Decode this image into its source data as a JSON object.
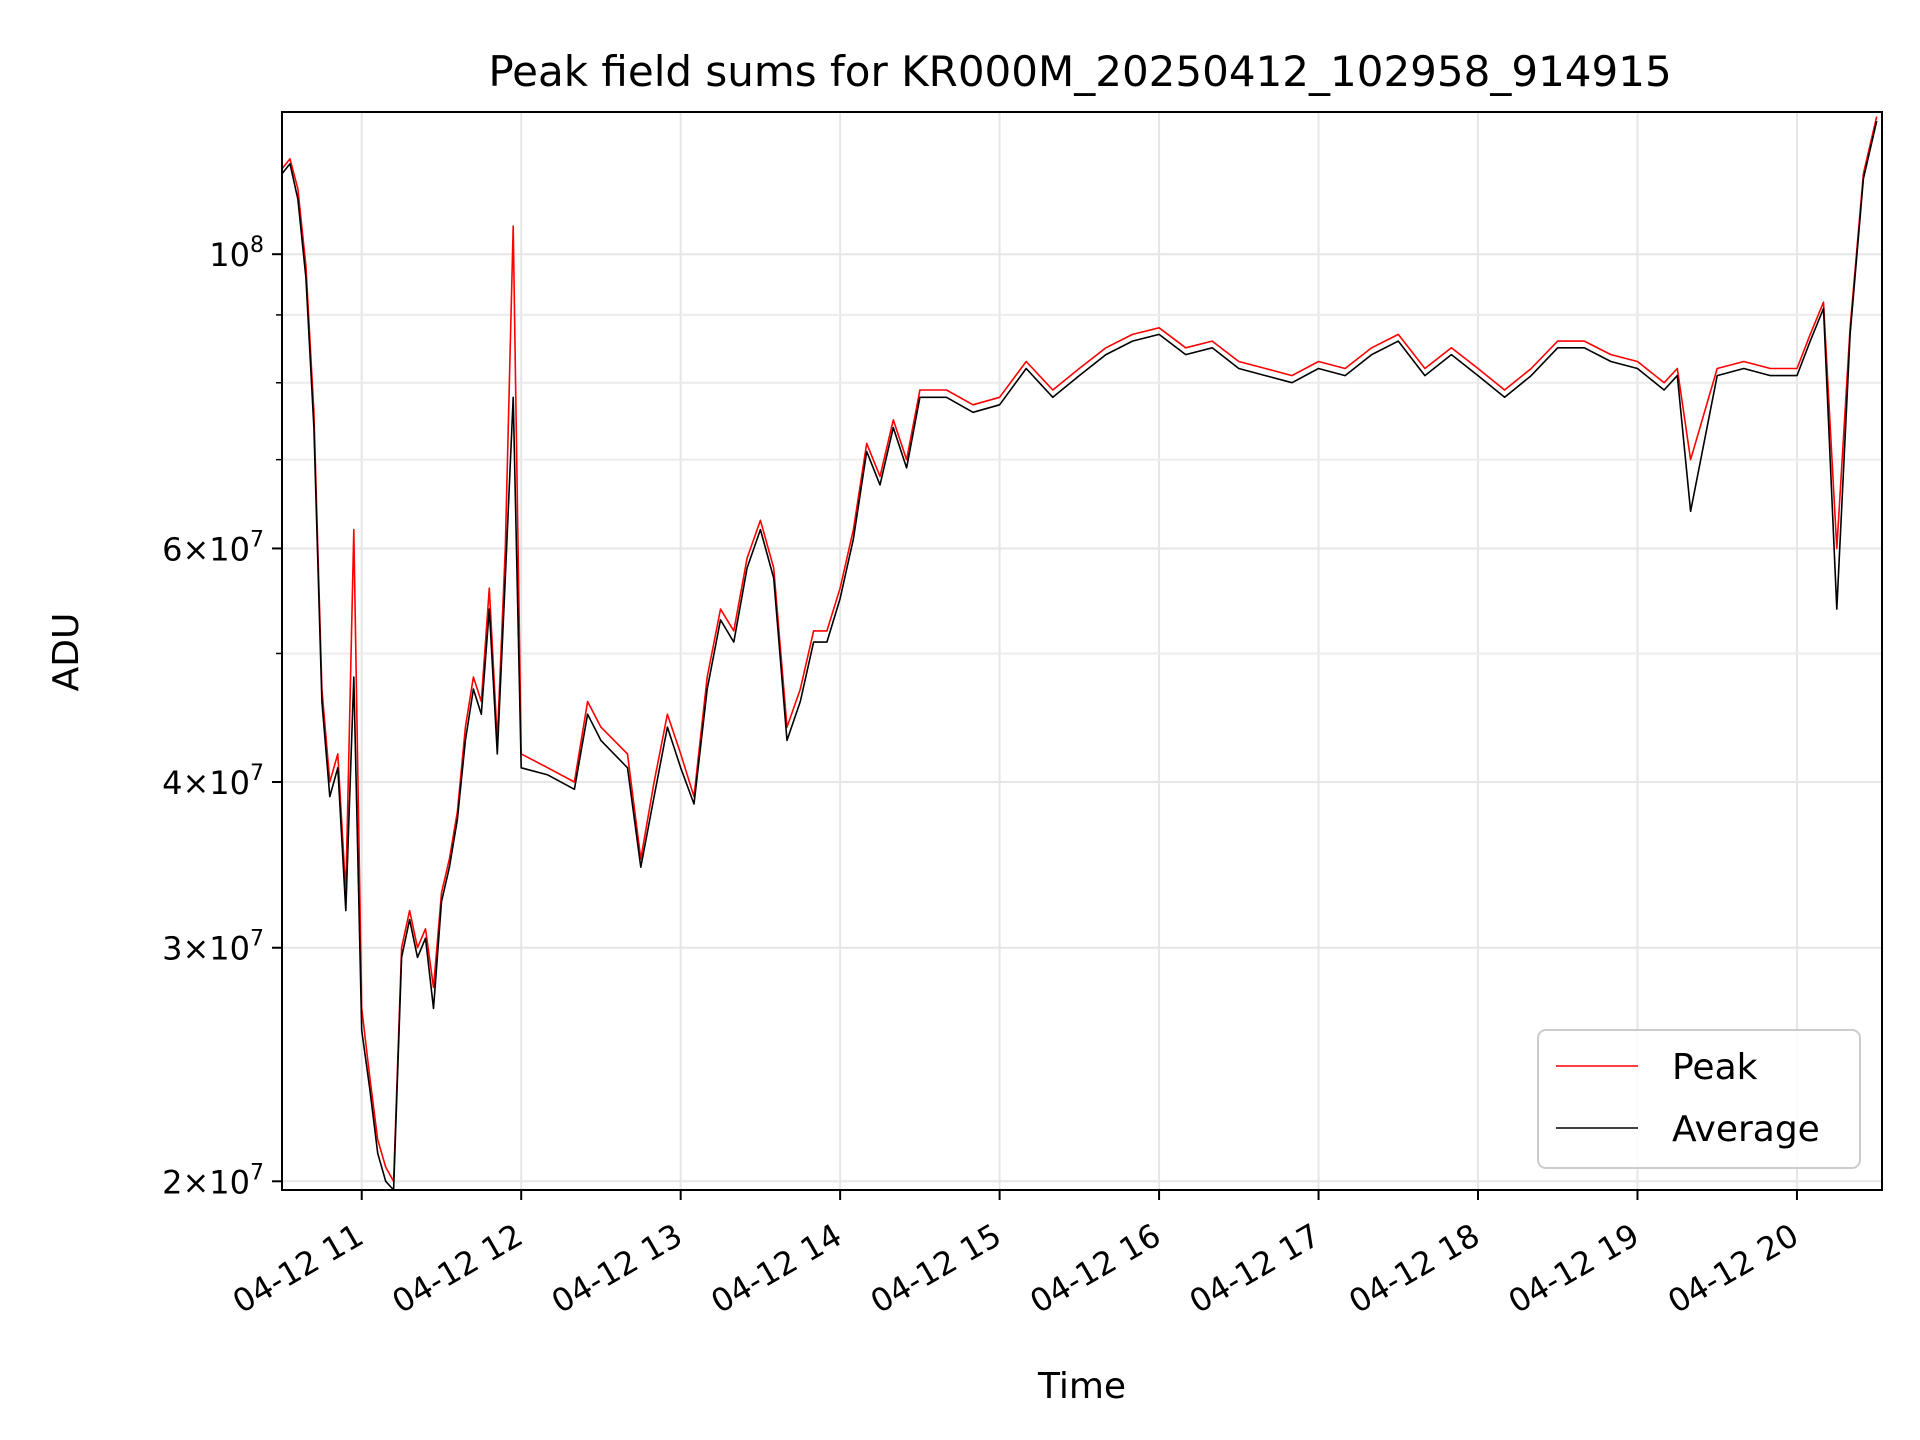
{
  "chart_data": {
    "type": "line",
    "title": "Peak field sums for KR000M_20250412_102958_914915",
    "xlabel": "Time",
    "ylabel": "ADU",
    "yscale": "log",
    "grid": true,
    "legend_position": "lower-right",
    "xlim": [
      "2025-04-12 10:30",
      "2025-04-12 20:32"
    ],
    "ylim": [
      19700000,
      128000000
    ],
    "x_ticks": [
      {
        "value": "2025-04-12 11:00",
        "label": "04-12 11"
      },
      {
        "value": "2025-04-12 12:00",
        "label": "04-12 12"
      },
      {
        "value": "2025-04-12 13:00",
        "label": "04-12 13"
      },
      {
        "value": "2025-04-12 14:00",
        "label": "04-12 14"
      },
      {
        "value": "2025-04-12 15:00",
        "label": "04-12 15"
      },
      {
        "value": "2025-04-12 16:00",
        "label": "04-12 16"
      },
      {
        "value": "2025-04-12 17:00",
        "label": "04-12 17"
      },
      {
        "value": "2025-04-12 18:00",
        "label": "04-12 18"
      },
      {
        "value": "2025-04-12 19:00",
        "label": "04-12 19"
      },
      {
        "value": "2025-04-12 20:00",
        "label": "04-12 20"
      }
    ],
    "y_ticks": [
      {
        "value": 20000000,
        "mant": "2",
        "exp": "7"
      },
      {
        "value": 30000000,
        "mant": "3",
        "exp": "7"
      },
      {
        "value": 40000000,
        "mant": "4",
        "exp": "7"
      },
      {
        "value": 60000000,
        "mant": "6",
        "exp": "7"
      },
      {
        "value": 100000000,
        "mant": "",
        "exp": "8"
      }
    ],
    "y_minor_ticks": [
      50000000,
      70000000,
      80000000,
      90000000
    ],
    "colors": {
      "Peak": "#ff0000",
      "Average": "#000000"
    },
    "series": [
      {
        "name": "Peak",
        "x": [
          "2025-04-12 10:30",
          "2025-04-12 10:33",
          "2025-04-12 10:36",
          "2025-04-12 10:39",
          "2025-04-12 10:42",
          "2025-04-12 10:45",
          "2025-04-12 10:48",
          "2025-04-12 10:51",
          "2025-04-12 10:54",
          "2025-04-12 10:57",
          "2025-04-12 11:00",
          "2025-04-12 11:03",
          "2025-04-12 11:06",
          "2025-04-12 11:09",
          "2025-04-12 11:12",
          "2025-04-12 11:15",
          "2025-04-12 11:18",
          "2025-04-12 11:21",
          "2025-04-12 11:24",
          "2025-04-12 11:27",
          "2025-04-12 11:30",
          "2025-04-12 11:33",
          "2025-04-12 11:36",
          "2025-04-12 11:39",
          "2025-04-12 11:42",
          "2025-04-12 11:45",
          "2025-04-12 11:48",
          "2025-04-12 11:51",
          "2025-04-12 11:54",
          "2025-04-12 11:57",
          "2025-04-12 12:00",
          "2025-04-12 12:10",
          "2025-04-12 12:20",
          "2025-04-12 12:25",
          "2025-04-12 12:30",
          "2025-04-12 12:40",
          "2025-04-12 12:45",
          "2025-04-12 12:50",
          "2025-04-12 12:55",
          "2025-04-12 13:00",
          "2025-04-12 13:05",
          "2025-04-12 13:10",
          "2025-04-12 13:15",
          "2025-04-12 13:20",
          "2025-04-12 13:25",
          "2025-04-12 13:30",
          "2025-04-12 13:35",
          "2025-04-12 13:40",
          "2025-04-12 13:45",
          "2025-04-12 13:50",
          "2025-04-12 13:55",
          "2025-04-12 14:00",
          "2025-04-12 14:05",
          "2025-04-12 14:10",
          "2025-04-12 14:15",
          "2025-04-12 14:20",
          "2025-04-12 14:25",
          "2025-04-12 14:30",
          "2025-04-12 14:40",
          "2025-04-12 14:50",
          "2025-04-12 15:00",
          "2025-04-12 15:10",
          "2025-04-12 15:20",
          "2025-04-12 15:30",
          "2025-04-12 15:40",
          "2025-04-12 15:50",
          "2025-04-12 16:00",
          "2025-04-12 16:10",
          "2025-04-12 16:20",
          "2025-04-12 16:30",
          "2025-04-12 16:40",
          "2025-04-12 16:50",
          "2025-04-12 17:00",
          "2025-04-12 17:10",
          "2025-04-12 17:20",
          "2025-04-12 17:30",
          "2025-04-12 17:40",
          "2025-04-12 17:50",
          "2025-04-12 18:00",
          "2025-04-12 18:10",
          "2025-04-12 18:20",
          "2025-04-12 18:30",
          "2025-04-12 18:40",
          "2025-04-12 18:50",
          "2025-04-12 19:00",
          "2025-04-12 19:10",
          "2025-04-12 19:15",
          "2025-04-12 19:20",
          "2025-04-12 19:30",
          "2025-04-12 19:40",
          "2025-04-12 19:50",
          "2025-04-12 20:00",
          "2025-04-12 20:05",
          "2025-04-12 20:10",
          "2025-04-12 20:15",
          "2025-04-12 20:20",
          "2025-04-12 20:25",
          "2025-04-12 20:30"
        ],
        "values": [
          116000000,
          118000000,
          112000000,
          98000000,
          76000000,
          47000000,
          40000000,
          42000000,
          33000000,
          62000000,
          27000000,
          24000000,
          21500000,
          20500000,
          20000000,
          30000000,
          32000000,
          30000000,
          31000000,
          28000000,
          33000000,
          35000000,
          38000000,
          44000000,
          48000000,
          46000000,
          56000000,
          43000000,
          60000000,
          105000000,
          42000000,
          41000000,
          40000000,
          46000000,
          44000000,
          42000000,
          35000000,
          40000000,
          45000000,
          42000000,
          39000000,
          48000000,
          54000000,
          52000000,
          59000000,
          63000000,
          58000000,
          44000000,
          47000000,
          52000000,
          52000000,
          56000000,
          62000000,
          72000000,
          68000000,
          75000000,
          70000000,
          79000000,
          79000000,
          77000000,
          78000000,
          83000000,
          79000000,
          82000000,
          85000000,
          87000000,
          88000000,
          85000000,
          86000000,
          83000000,
          82000000,
          81000000,
          83000000,
          82000000,
          85000000,
          87000000,
          82000000,
          85000000,
          82000000,
          79000000,
          82000000,
          86000000,
          86000000,
          84000000,
          83000000,
          80000000,
          82000000,
          70000000,
          82000000,
          83000000,
          82000000,
          82000000,
          87000000,
          92000000,
          60000000,
          88000000,
          115000000,
          127000000
        ]
      },
      {
        "name": "Average",
        "x": [
          "2025-04-12 10:30",
          "2025-04-12 10:33",
          "2025-04-12 10:36",
          "2025-04-12 10:39",
          "2025-04-12 10:42",
          "2025-04-12 10:45",
          "2025-04-12 10:48",
          "2025-04-12 10:51",
          "2025-04-12 10:54",
          "2025-04-12 10:57",
          "2025-04-12 11:00",
          "2025-04-12 11:03",
          "2025-04-12 11:06",
          "2025-04-12 11:09",
          "2025-04-12 11:12",
          "2025-04-12 11:15",
          "2025-04-12 11:18",
          "2025-04-12 11:21",
          "2025-04-12 11:24",
          "2025-04-12 11:27",
          "2025-04-12 11:30",
          "2025-04-12 11:33",
          "2025-04-12 11:36",
          "2025-04-12 11:39",
          "2025-04-12 11:42",
          "2025-04-12 11:45",
          "2025-04-12 11:48",
          "2025-04-12 11:51",
          "2025-04-12 11:54",
          "2025-04-12 11:57",
          "2025-04-12 12:00",
          "2025-04-12 12:10",
          "2025-04-12 12:20",
          "2025-04-12 12:25",
          "2025-04-12 12:30",
          "2025-04-12 12:40",
          "2025-04-12 12:45",
          "2025-04-12 12:50",
          "2025-04-12 12:55",
          "2025-04-12 13:00",
          "2025-04-12 13:05",
          "2025-04-12 13:10",
          "2025-04-12 13:15",
          "2025-04-12 13:20",
          "2025-04-12 13:25",
          "2025-04-12 13:30",
          "2025-04-12 13:35",
          "2025-04-12 13:40",
          "2025-04-12 13:45",
          "2025-04-12 13:50",
          "2025-04-12 13:55",
          "2025-04-12 14:00",
          "2025-04-12 14:05",
          "2025-04-12 14:10",
          "2025-04-12 14:15",
          "2025-04-12 14:20",
          "2025-04-12 14:25",
          "2025-04-12 14:30",
          "2025-04-12 14:40",
          "2025-04-12 14:50",
          "2025-04-12 15:00",
          "2025-04-12 15:10",
          "2025-04-12 15:20",
          "2025-04-12 15:30",
          "2025-04-12 15:40",
          "2025-04-12 15:50",
          "2025-04-12 16:00",
          "2025-04-12 16:10",
          "2025-04-12 16:20",
          "2025-04-12 16:30",
          "2025-04-12 16:40",
          "2025-04-12 16:50",
          "2025-04-12 17:00",
          "2025-04-12 17:10",
          "2025-04-12 17:20",
          "2025-04-12 17:30",
          "2025-04-12 17:40",
          "2025-04-12 17:50",
          "2025-04-12 18:00",
          "2025-04-12 18:10",
          "2025-04-12 18:20",
          "2025-04-12 18:30",
          "2025-04-12 18:40",
          "2025-04-12 18:50",
          "2025-04-12 19:00",
          "2025-04-12 19:10",
          "2025-04-12 19:15",
          "2025-04-12 19:20",
          "2025-04-12 19:30",
          "2025-04-12 19:40",
          "2025-04-12 19:50",
          "2025-04-12 20:00",
          "2025-04-12 20:05",
          "2025-04-12 20:10",
          "2025-04-12 20:15",
          "2025-04-12 20:20",
          "2025-04-12 20:25",
          "2025-04-12 20:30"
        ],
        "values": [
          115000000,
          117000000,
          110000000,
          96000000,
          74000000,
          46000000,
          39000000,
          41000000,
          32000000,
          48000000,
          26000000,
          23500000,
          21000000,
          20000000,
          19700000,
          29500000,
          31500000,
          29500000,
          30500000,
          27000000,
          32500000,
          34500000,
          37500000,
          43000000,
          47000000,
          45000000,
          54000000,
          42000000,
          57000000,
          78000000,
          41000000,
          40500000,
          39500000,
          45000000,
          43000000,
          41000000,
          34500000,
          39000000,
          44000000,
          41000000,
          38500000,
          47000000,
          53000000,
          51000000,
          58000000,
          62000000,
          57000000,
          43000000,
          46000000,
          51000000,
          51000000,
          55000000,
          61000000,
          71000000,
          67000000,
          74000000,
          69000000,
          78000000,
          78000000,
          76000000,
          77000000,
          82000000,
          78000000,
          81000000,
          84000000,
          86000000,
          87000000,
          84000000,
          85000000,
          82000000,
          81000000,
          80000000,
          82000000,
          81000000,
          84000000,
          86000000,
          81000000,
          84000000,
          81000000,
          78000000,
          81000000,
          85000000,
          85000000,
          83000000,
          82000000,
          79000000,
          81000000,
          64000000,
          81000000,
          82000000,
          81000000,
          81000000,
          86000000,
          91000000,
          54000000,
          87000000,
          114000000,
          126000000
        ]
      }
    ]
  }
}
